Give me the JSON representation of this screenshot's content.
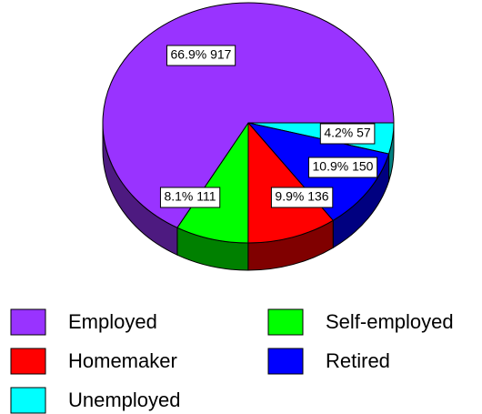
{
  "chart_data": {
    "type": "pie",
    "categories": [
      "Unemployed",
      "Retired",
      "Homemaker",
      "Self-employed",
      "Employed"
    ],
    "values": [
      57,
      150,
      136,
      111,
      917
    ],
    "value_labels": [
      "4.2% 57",
      "10.9% 150",
      "9.9% 136",
      "8.1% 111",
      "66.9% 917"
    ],
    "colors": [
      "#00ffff",
      "#0000ff",
      "#ff0000",
      "#00ff00",
      "#9933ff"
    ],
    "legend": "bottom"
  }
}
